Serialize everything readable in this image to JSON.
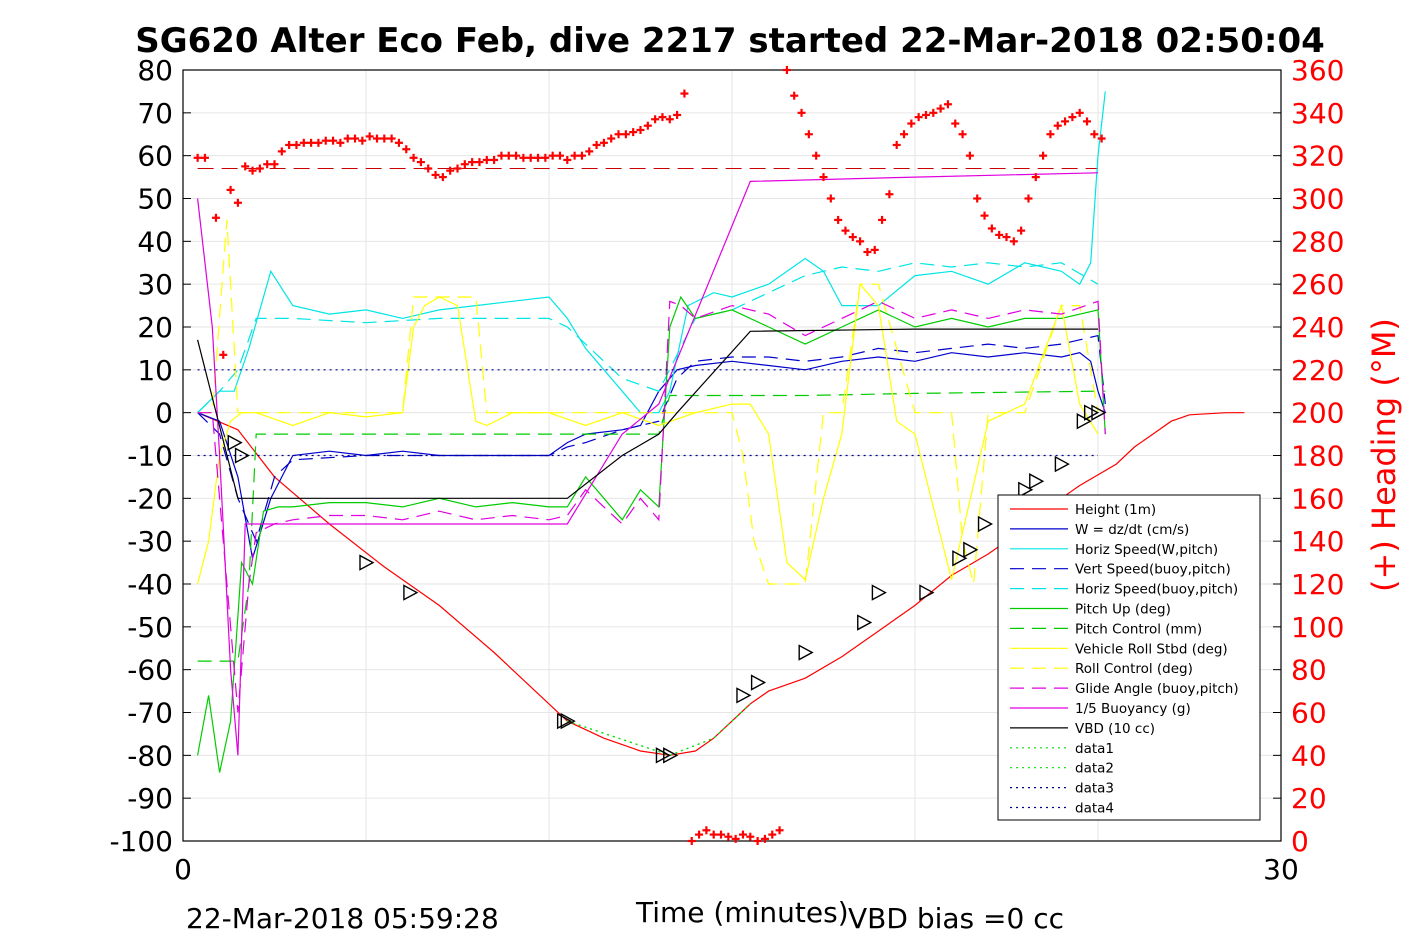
{
  "chart_data": {
    "type": "line",
    "title": "SG620 Alter Eco Feb, dive 2217 started 22-Mar-2018 02:50:04",
    "xlabel": "Time (minutes)",
    "ylabel": "",
    "y2label": "(+) Heading (°M)",
    "xlim": [
      0,
      30
    ],
    "ylim": [
      -100,
      80
    ],
    "y2lim": [
      0,
      360
    ],
    "x_ticks": [
      "0",
      "30"
    ],
    "y_ticks": [
      "80",
      "70",
      "60",
      "50",
      "40",
      "30",
      "20",
      "10",
      "0",
      "-10",
      "-20",
      "-30",
      "-40",
      "-50",
      "-60",
      "-70",
      "-80",
      "-90",
      "-100"
    ],
    "y2_ticks": [
      "360",
      "340",
      "320",
      "300",
      "280",
      "260",
      "240",
      "220",
      "200",
      "180",
      "160",
      "140",
      "120",
      "100",
      "80",
      "60",
      "40",
      "20",
      "0"
    ],
    "grid": true,
    "legend_position": "bottom-right",
    "footer_left": "22-Mar-2018 05:59:28",
    "footer_right": "VBD bias =0 cc",
    "series": [
      {
        "name": "Height (1m)",
        "color": "#ff0000",
        "style": "solid",
        "x": [
          0.4,
          1.5,
          2.5,
          4.0,
          5.5,
          7.0,
          8.5,
          10.0,
          10.5,
          11.5,
          12.5,
          13.3,
          14.0,
          14.5,
          15.5,
          16.0,
          17.0,
          18.0,
          19.0,
          20.0,
          21.0,
          22.0,
          23.0,
          24.0,
          24.5,
          25.5,
          26.0,
          26.5,
          27.0,
          27.5,
          28.5,
          29.0
        ],
        "y": [
          0,
          -4,
          -15,
          -26,
          -36,
          -45,
          -56,
          -68,
          -72,
          -76,
          -79,
          -80,
          -79,
          -76,
          -68,
          -65,
          -62,
          -57,
          -51,
          -45,
          -38,
          -33,
          -27,
          -20,
          -17,
          -12,
          -8,
          -5,
          -2,
          -0.5,
          0,
          0
        ]
      },
      {
        "name": "W = dz/dt (cm/s)",
        "color": "#0000cc",
        "style": "solid",
        "x": [
          0.4,
          1.0,
          1.5,
          1.9,
          2.4,
          3,
          4,
          5,
          6,
          7,
          8,
          9,
          10,
          10.5,
          11,
          12,
          12.5,
          13,
          13.5,
          14,
          15,
          16,
          17,
          18,
          19,
          20,
          21,
          22,
          23,
          24,
          24.5,
          24.8,
          25,
          25.2
        ],
        "y": [
          0,
          -2,
          -15,
          -34,
          -20,
          -10,
          -9,
          -10,
          -9,
          -10,
          -10,
          -10,
          -10,
          -7,
          -5,
          -4,
          -3,
          5,
          10,
          11,
          12,
          11,
          10,
          12,
          13,
          12,
          14,
          13,
          14,
          13,
          14,
          12,
          5,
          0
        ]
      },
      {
        "name": "Horiz Speed(W,pitch)",
        "color": "#00e5e5",
        "style": "solid",
        "x": [
          0.4,
          1.0,
          1.4,
          1.8,
          2.4,
          3,
          4,
          5,
          6,
          7,
          8,
          9,
          10,
          10.5,
          11,
          11.5,
          12,
          12.5,
          13,
          13.3,
          13.8,
          14.5,
          15,
          16,
          17,
          17.5,
          18,
          19,
          20,
          21,
          22,
          23,
          24,
          24.5,
          24.8,
          25,
          25.2
        ],
        "y": [
          0,
          5,
          5,
          15,
          33,
          25,
          23,
          24,
          22,
          24,
          25,
          26,
          27,
          22,
          15,
          10,
          5,
          0,
          0,
          5,
          25,
          28,
          27,
          30,
          36,
          33,
          25,
          25,
          32,
          33,
          30,
          35,
          33,
          30,
          35,
          60,
          75
        ]
      },
      {
        "name": "Vert Speed(buoy,pitch)",
        "color": "#0000cc",
        "style": "dashed",
        "x": [
          0.4,
          1.0,
          1.5,
          2.0,
          2.5,
          3,
          5,
          7,
          9,
          10,
          10.5,
          11,
          12,
          13,
          13.5,
          14,
          15,
          16,
          17,
          18,
          19,
          20,
          21,
          22,
          23,
          24,
          24.5,
          25,
          25.2
        ],
        "y": [
          0,
          -5,
          -20,
          -30,
          -15,
          -11,
          -10,
          -10,
          -10,
          -10,
          -8,
          -7,
          -4,
          -2,
          8,
          12,
          13,
          13,
          12,
          13,
          15,
          14,
          15,
          16,
          15,
          16,
          17,
          18,
          2
        ]
      },
      {
        "name": "Horiz Speed(buoy,pitch)",
        "color": "#00e5e5",
        "style": "dashed",
        "x": [
          0.4,
          1.0,
          1.5,
          2.0,
          3,
          5,
          7,
          9,
          10,
          10.5,
          11,
          12,
          13,
          14,
          15,
          16,
          17,
          18,
          19,
          20,
          21,
          22,
          23,
          24,
          25
        ],
        "y": [
          0,
          5,
          10,
          22,
          22,
          21,
          22,
          22,
          22,
          20,
          16,
          8,
          5,
          22,
          24,
          28,
          32,
          34,
          33,
          35,
          34,
          35,
          34,
          35,
          30
        ]
      },
      {
        "name": "Pitch Up (deg)",
        "color": "#00cc00",
        "style": "solid",
        "x": [
          0.4,
          0.7,
          1.0,
          1.3,
          1.6,
          1.9,
          2.2,
          2.6,
          3,
          4,
          5,
          6,
          7,
          8,
          9,
          10,
          10.5,
          11,
          11.5,
          12,
          12.5,
          13,
          13.3,
          13.6,
          14,
          15,
          16,
          17,
          18,
          19,
          20,
          21,
          22,
          23,
          24,
          25,
          25.2
        ],
        "y": [
          -80,
          -66,
          -84,
          -72,
          -35,
          -40,
          -23,
          -22,
          -22,
          -21,
          -21,
          -22,
          -20,
          -22,
          -21,
          -22,
          -22,
          -15,
          -20,
          -25,
          -18,
          -22,
          20,
          27,
          22,
          24,
          20,
          16,
          20,
          24,
          20,
          22,
          20,
          22,
          22,
          24,
          -5
        ]
      },
      {
        "name": "Pitch Control (mm)",
        "color": "#00cc00",
        "style": "dashed",
        "x": [
          0.4,
          1.0,
          1.5,
          1.8,
          2.0,
          3,
          10,
          12,
          13,
          13.3,
          14,
          17,
          20,
          25,
          25.2
        ],
        "y": [
          -58,
          -58,
          -58,
          -40,
          -5,
          -5,
          -5,
          -5,
          -5,
          4,
          4,
          4,
          4.5,
          5,
          5
        ]
      },
      {
        "name": "Vehicle Roll Stbd (deg)",
        "color": "#ffff00",
        "style": "solid",
        "x": [
          0.4,
          0.7,
          1.0,
          1.3,
          1.6,
          2.0,
          3,
          4,
          5,
          6,
          6.3,
          6.6,
          7,
          7.5,
          8,
          8.3,
          9,
          10,
          11,
          12,
          13,
          14,
          15,
          15.5,
          16,
          16.5,
          17,
          17.5,
          18,
          18.5,
          19,
          19.5,
          20,
          21,
          22,
          23,
          24,
          24.5,
          25
        ],
        "y": [
          -40,
          -30,
          -10,
          -2,
          0,
          0,
          -3,
          0,
          -1,
          0,
          20,
          25,
          27,
          25,
          -2,
          -3,
          0,
          0,
          -3,
          0,
          -3,
          0,
          2,
          2,
          -5,
          -35,
          -39,
          -20,
          -5,
          30,
          25,
          -2,
          -5,
          -39,
          -2,
          2,
          25,
          2,
          -5
        ]
      },
      {
        "name": "Roll Control (deg)",
        "color": "#ffff00",
        "style": "dashed",
        "x": [
          0.4,
          0.8,
          1.2,
          1.5,
          2,
          6,
          6.3,
          6.6,
          7,
          7.5,
          8,
          8.3,
          10,
          15,
          15.3,
          15.6,
          16,
          16.5,
          17,
          17.5,
          18,
          18.5,
          19,
          20,
          21,
          21.3,
          21.6,
          22,
          23,
          24,
          24.5,
          25
        ],
        "y": [
          0,
          0,
          45,
          0,
          0,
          0,
          27,
          27,
          27,
          27,
          27,
          0,
          0,
          0,
          -10,
          -30,
          -40,
          -40,
          -40,
          0,
          0,
          30,
          30,
          0,
          0,
          -30,
          -40,
          0,
          0,
          25,
          25,
          0
        ]
      },
      {
        "name": "Glide Angle (buoy,pitch)",
        "color": "#e000e0",
        "style": "dashed",
        "x": [
          0.4,
          0.8,
          1.0,
          1.3,
          1.5,
          1.8,
          2.0,
          2.5,
          3,
          4,
          5,
          6,
          7,
          8,
          9,
          10,
          10.5,
          11,
          11.5,
          12,
          12.5,
          13,
          13.3,
          13.6,
          14,
          15,
          16,
          17,
          18,
          19,
          20,
          21,
          22,
          23,
          24,
          25,
          25.2
        ],
        "y": [
          0,
          0,
          -20,
          -50,
          -70,
          -40,
          -28,
          -26,
          -25,
          -24,
          -24,
          -25,
          -23,
          -25,
          -24,
          -25,
          -24,
          -18,
          -22,
          -26,
          -20,
          -25,
          26,
          25,
          22,
          25,
          23,
          18,
          22,
          26,
          22,
          24,
          22,
          24,
          23,
          26,
          -5
        ]
      },
      {
        "name": "1/5 Buoyancy (g)",
        "color": "#e000e0",
        "style": "solid",
        "x": [
          0.4,
          0.8,
          1.0,
          1.3,
          1.5,
          1.7,
          2.0,
          2.5,
          5,
          10,
          10.5,
          12,
          13,
          15.5,
          20,
          25
        ],
        "y": [
          50,
          20,
          -10,
          -60,
          -80,
          -26,
          -26,
          -26,
          -26,
          -26,
          -26,
          -5,
          2,
          54,
          55,
          56
        ]
      },
      {
        "name": "VBD (10 cc)",
        "color": "#000000",
        "style": "solid",
        "x": [
          0.4,
          1.5,
          2.0,
          5,
          10,
          10.5,
          12,
          13,
          13.5,
          15.5,
          20,
          25
        ],
        "y": [
          17,
          -20,
          -20,
          -20,
          -20,
          -20,
          -10,
          -5,
          0,
          19,
          19.5,
          19.5
        ]
      },
      {
        "name": "data1",
        "color": "#00e000",
        "style": "dotted",
        "x": [
          10.5,
          13.3,
          14.5,
          15.5
        ],
        "y": [
          -72,
          -80,
          -76,
          -68
        ]
      },
      {
        "name": "data2",
        "color": "#00e000",
        "style": "dotted",
        "x": [
          10.5,
          13.3,
          14.5,
          15.5
        ],
        "y": [
          -72,
          -80,
          -76,
          -68
        ]
      },
      {
        "name": "data3",
        "color": "#000088",
        "style": "dotted",
        "x": [
          0.4,
          25
        ],
        "y": [
          10,
          10
        ]
      },
      {
        "name": "data4",
        "color": "#000088",
        "style": "dotted",
        "x": [
          0.4,
          25
        ],
        "y": [
          -10,
          -10
        ]
      }
    ],
    "heading_reference": 314,
    "heading_markers": {
      "x": [
        0.4,
        0.6,
        0.9,
        1.1,
        1.3,
        1.5,
        1.7,
        1.9,
        2.1,
        2.3,
        2.5,
        2.7,
        2.9,
        3.1,
        3.3,
        3.5,
        3.7,
        3.9,
        4.1,
        4.3,
        4.5,
        4.7,
        4.9,
        5.1,
        5.3,
        5.5,
        5.7,
        5.9,
        6.1,
        6.3,
        6.5,
        6.7,
        6.9,
        7.1,
        7.3,
        7.5,
        7.7,
        7.9,
        8.1,
        8.3,
        8.5,
        8.7,
        8.9,
        9.1,
        9.3,
        9.5,
        9.7,
        9.9,
        10.1,
        10.3,
        10.5,
        10.7,
        10.9,
        11.1,
        11.3,
        11.5,
        11.7,
        11.9,
        12.1,
        12.3,
        12.5,
        12.7,
        12.9,
        13.1,
        13.3,
        13.5,
        13.7,
        13.9,
        14.1,
        14.3,
        14.5,
        14.7,
        14.9,
        15.1,
        15.3,
        15.5,
        15.7,
        15.9,
        16.1,
        16.3,
        16.5,
        16.7,
        16.9,
        17.1,
        17.3,
        17.5,
        17.7,
        17.9,
        18.1,
        18.3,
        18.5,
        18.7,
        18.9,
        19.1,
        19.3,
        19.5,
        19.7,
        19.9,
        20.1,
        20.3,
        20.5,
        20.7,
        20.9,
        21.1,
        21.3,
        21.5,
        21.7,
        21.9,
        22.1,
        22.3,
        22.5,
        22.7,
        22.9,
        23.1,
        23.3,
        23.5,
        23.7,
        23.9,
        24.1,
        24.3,
        24.5,
        24.7,
        24.9,
        25.1
      ],
      "y": [
        319,
        319,
        291,
        227,
        304,
        298,
        315,
        313,
        314,
        316,
        316,
        322,
        325,
        325,
        326,
        326,
        326,
        327,
        327,
        326,
        328,
        328,
        327,
        329,
        328,
        328,
        328,
        326,
        323,
        319,
        317,
        314,
        311,
        310,
        313,
        314,
        316,
        317,
        317,
        318,
        318,
        320,
        320,
        320,
        319,
        319,
        319,
        319,
        320,
        320,
        318,
        320,
        320,
        322,
        325,
        326,
        328,
        330,
        330,
        331,
        332,
        334,
        337,
        338,
        337,
        339,
        349,
        0,
        3,
        5,
        3,
        3,
        2,
        1,
        3,
        2,
        0,
        1,
        3,
        5,
        360,
        348,
        340,
        330,
        320,
        310,
        300,
        290,
        285,
        282,
        280,
        275,
        276,
        290,
        302,
        325,
        330,
        335,
        338,
        339,
        340,
        342,
        344,
        335,
        330,
        320,
        300,
        292,
        286,
        283,
        282,
        280,
        285,
        300,
        310,
        320,
        330,
        334,
        336,
        338,
        340,
        336,
        330,
        328
      ]
    },
    "triangle_markers": {
      "x": [
        1.4,
        1.6,
        5.0,
        6.2,
        10.4,
        10.5,
        13.1,
        13.3,
        15.3,
        15.7,
        17.0,
        18.6,
        19.0,
        20.3,
        21.2,
        21.5,
        21.9,
        23.0,
        23.3,
        24.0,
        24.6,
        24.8,
        25.0
      ],
      "y": [
        -7,
        -10,
        -35,
        -42,
        -72,
        -72,
        -80,
        -80,
        -66,
        -63,
        -56,
        -49,
        -42,
        -42,
        -34,
        -32,
        -26,
        -18,
        -16,
        -12,
        -2,
        0,
        0
      ]
    }
  }
}
